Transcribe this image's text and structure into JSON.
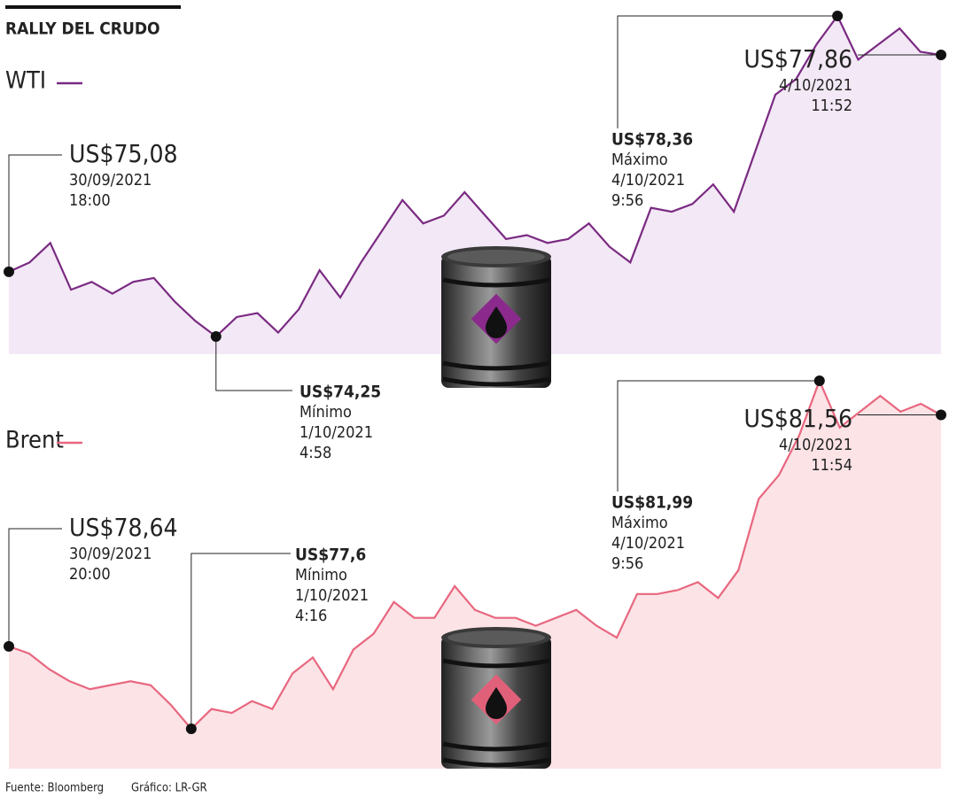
{
  "title": "RALLY DEL CRUDO",
  "chart_data": [
    {
      "type": "line",
      "area_color": "#f3e8f5",
      "series": [
        {
          "name": "WTI",
          "color": "#7a2a82",
          "values": [
            75.08,
            75.2,
            75.45,
            74.85,
            74.95,
            74.8,
            74.95,
            75.0,
            74.7,
            74.45,
            74.25,
            74.5,
            74.55,
            74.3,
            74.6,
            75.1,
            74.75,
            75.2,
            75.6,
            76.0,
            75.7,
            75.8,
            76.1,
            75.8,
            75.5,
            75.55,
            75.45,
            75.5,
            75.7,
            75.4,
            75.2,
            75.9,
            75.85,
            75.95,
            76.2,
            75.85,
            76.6,
            77.35,
            77.55,
            78.0,
            78.36,
            77.8,
            78.0,
            78.2,
            77.9,
            77.86
          ]
        }
      ],
      "annotations": [
        {
          "value": 75.08,
          "label": "US$75,08",
          "date": "30/09/2021",
          "time": "18:00"
        },
        {
          "value": 74.25,
          "label": "US$74,25",
          "note": "Mínimo",
          "date": "1/10/2021",
          "time": "4:58"
        },
        {
          "value": 78.36,
          "label": "US$78,36",
          "note": "Máximo",
          "date": "4/10/2021",
          "time": "9:56"
        },
        {
          "value": 77.86,
          "label": "US$77,86",
          "date": "4/10/2021",
          "time": "11:52"
        }
      ]
    },
    {
      "type": "line",
      "area_color": "#fbe3e6",
      "series": [
        {
          "name": "Brent",
          "color": "#e8677f",
          "values": [
            78.64,
            78.55,
            78.35,
            78.2,
            78.1,
            78.15,
            78.2,
            78.15,
            77.9,
            77.6,
            77.85,
            77.8,
            77.95,
            77.85,
            78.3,
            78.5,
            78.1,
            78.6,
            78.8,
            79.2,
            79.0,
            79.0,
            79.4,
            79.1,
            79.0,
            79.0,
            78.9,
            79.0,
            79.1,
            78.9,
            78.75,
            79.3,
            79.3,
            79.35,
            79.45,
            79.25,
            79.6,
            80.5,
            80.8,
            81.3,
            81.99,
            81.4,
            81.6,
            81.8,
            81.6,
            81.7,
            81.56
          ]
        }
      ],
      "annotations": [
        {
          "value": 78.64,
          "label": "US$78,64",
          "date": "30/09/2021",
          "time": "20:00"
        },
        {
          "value": 77.6,
          "label": "US$77,6",
          "note": "Mínimo",
          "date": "1/10/2021",
          "time": "4:16"
        },
        {
          "value": 81.99,
          "label": "US$81,99",
          "note": "Máximo",
          "date": "4/10/2021",
          "time": "9:56"
        },
        {
          "value": 81.56,
          "label": "US$81,56",
          "date": "4/10/2021",
          "time": "11:54"
        }
      ]
    }
  ],
  "source": "Fuente: Bloomberg",
  "credit": "Gráfico: LR-GR"
}
